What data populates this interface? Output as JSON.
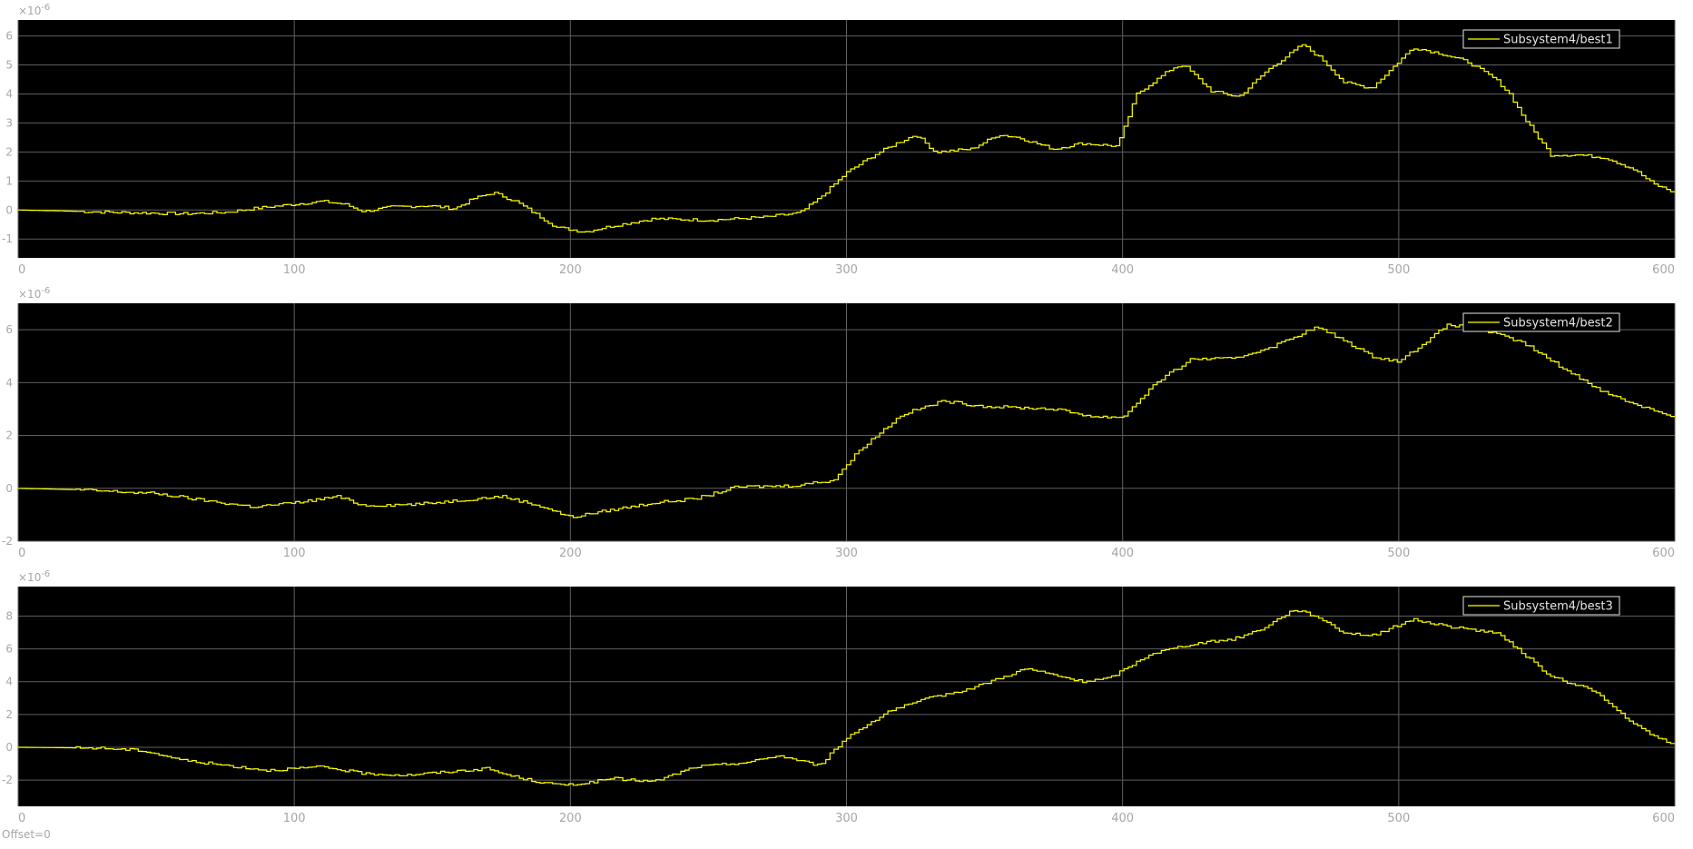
{
  "footer": {
    "offset_text": "Offset=0"
  },
  "colors": {
    "background": "#ffffff",
    "axes_bg": "#000000",
    "grid": "#5f5f5f",
    "tick_text": "#a6a6a6",
    "trace": "#ffff00",
    "legend_text": "#e6e6e6"
  },
  "chart_data": [
    {
      "type": "line",
      "title": "",
      "legend": "Subsystem4/best1",
      "legend_position": "top-right",
      "exponent_label": "×10",
      "exponent_power": "-6",
      "xlim": [
        0,
        600
      ],
      "ylim": [
        -1.65,
        6.55
      ],
      "xticks": [
        0,
        100,
        200,
        300,
        400,
        500,
        600
      ],
      "yticks": [
        -1,
        0,
        1,
        2,
        3,
        4,
        5,
        6
      ],
      "grid": true,
      "x": [
        0,
        15,
        30,
        45,
        60,
        75,
        85,
        100,
        110,
        118,
        125,
        135,
        148,
        158,
        165,
        172,
        180,
        195,
        205,
        215,
        230,
        250,
        270,
        283,
        290,
        300,
        310,
        318,
        325,
        332,
        345,
        355,
        362,
        375,
        385,
        398,
        405,
        418,
        422,
        432,
        442,
        452,
        465,
        472,
        480,
        490,
        505,
        515,
        525,
        535,
        540,
        545,
        555,
        565,
        575,
        585,
        592,
        600
      ],
      "values": [
        0,
        -0.03,
        -0.07,
        -0.1,
        -0.13,
        -0.08,
        0.05,
        0.2,
        0.3,
        0.2,
        -0.05,
        0.1,
        0.15,
        0.05,
        0.4,
        0.6,
        0.3,
        -0.6,
        -0.75,
        -0.55,
        -0.3,
        -0.35,
        -0.25,
        -0.1,
        0.4,
        1.3,
        1.9,
        2.3,
        2.6,
        2.0,
        2.1,
        2.6,
        2.5,
        2.1,
        2.3,
        2.2,
        4.0,
        4.9,
        5.0,
        4.1,
        3.9,
        4.8,
        5.7,
        5.2,
        4.4,
        4.2,
        5.6,
        5.4,
        5.1,
        4.5,
        4.0,
        3.2,
        1.9,
        1.9,
        1.8,
        1.4,
        0.9,
        0.6
      ]
    },
    {
      "type": "line",
      "title": "",
      "legend": "Subsystem4/best2",
      "legend_position": "top-right",
      "exponent_label": "×10",
      "exponent_power": "-6",
      "xlim": [
        0,
        600
      ],
      "ylim": [
        -2,
        7
      ],
      "xticks": [
        0,
        100,
        200,
        300,
        400,
        500,
        600
      ],
      "yticks": [
        -2,
        0,
        2,
        4,
        6
      ],
      "grid": true,
      "x": [
        0,
        20,
        40,
        50,
        70,
        85,
        100,
        110,
        115,
        125,
        145,
        160,
        175,
        190,
        200,
        210,
        230,
        245,
        260,
        280,
        295,
        305,
        320,
        335,
        350,
        375,
        390,
        400,
        412,
        425,
        440,
        455,
        470,
        480,
        490,
        500,
        518,
        530,
        545,
        560,
        575,
        585,
        600
      ],
      "values": [
        0,
        -0.05,
        -0.15,
        -0.2,
        -0.5,
        -0.7,
        -0.55,
        -0.4,
        -0.3,
        -0.65,
        -0.6,
        -0.45,
        -0.3,
        -0.7,
        -1.1,
        -0.9,
        -0.55,
        -0.4,
        0.05,
        0.1,
        0.3,
        1.5,
        2.8,
        3.3,
        3.1,
        3.0,
        2.7,
        2.7,
        4.0,
        4.9,
        4.9,
        5.4,
        6.1,
        5.6,
        5.0,
        4.8,
        6.2,
        6.0,
        5.5,
        4.5,
        3.6,
        3.2,
        2.7
      ]
    },
    {
      "type": "line",
      "title": "",
      "legend": "Subsystem4/best3",
      "legend_position": "top-right",
      "exponent_label": "×10",
      "exponent_power": "-6",
      "xlim": [
        0,
        600
      ],
      "ylim": [
        -3.6,
        9.8
      ],
      "xticks": [
        0,
        100,
        200,
        300,
        400,
        500,
        600
      ],
      "yticks": [
        -2,
        0,
        2,
        4,
        6,
        8
      ],
      "grid": true,
      "x": [
        0,
        30,
        45,
        60,
        75,
        90,
        100,
        110,
        125,
        140,
        155,
        170,
        175,
        185,
        195,
        205,
        215,
        230,
        245,
        265,
        275,
        290,
        300,
        315,
        330,
        345,
        365,
        385,
        395,
        410,
        425,
        440,
        450,
        462,
        470,
        480,
        490,
        505,
        520,
        535,
        545,
        555,
        570,
        585,
        593,
        600
      ],
      "values": [
        0,
        -0.05,
        -0.2,
        -0.8,
        -1.1,
        -1.4,
        -1.3,
        -1.2,
        -1.6,
        -1.7,
        -1.5,
        -1.3,
        -1.6,
        -2.0,
        -2.3,
        -2.2,
        -1.9,
        -2.1,
        -1.2,
        -0.9,
        -0.5,
        -1.1,
        0.6,
        2.2,
        3.0,
        3.6,
        4.8,
        4.0,
        4.2,
        5.7,
        6.3,
        6.6,
        7.2,
        8.4,
        8.0,
        7.0,
        6.8,
        7.8,
        7.3,
        7.0,
        5.7,
        4.3,
        3.5,
        1.4,
        0.6,
        0.2
      ]
    }
  ]
}
